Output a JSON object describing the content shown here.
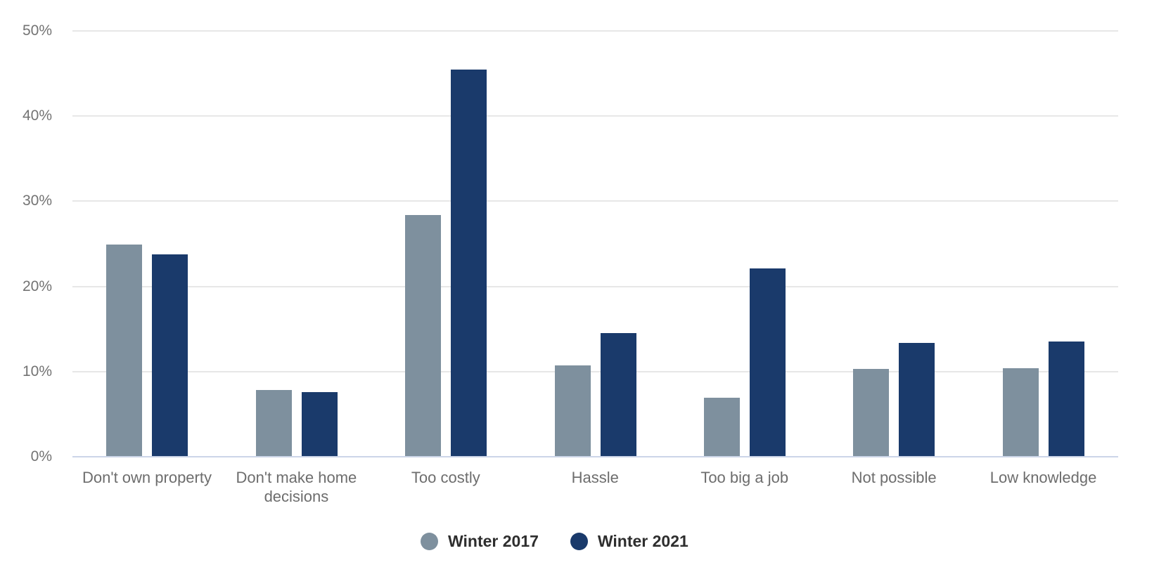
{
  "chart_data": {
    "type": "bar",
    "title": "",
    "categories": [
      "Don't own property",
      "Don't make home decisions",
      "Too costly",
      "Hassle",
      "Too big a job",
      "Not possible",
      "Low knowledge"
    ],
    "series": [
      {
        "name": "Winter 2017",
        "color": "#7E909E",
        "values": [
          24.9,
          7.8,
          28.4,
          10.7,
          6.9,
          10.3,
          10.4
        ]
      },
      {
        "name": "Winter 2021",
        "color": "#1A3A6B",
        "values": [
          23.8,
          7.6,
          45.5,
          14.5,
          22.1,
          13.4,
          13.5
        ]
      }
    ],
    "xlabel": "",
    "ylabel": "",
    "ylim": [
      0,
      50
    ],
    "ytick_step": 10,
    "ytick_labels": [
      "0%",
      "10%",
      "20%",
      "30%",
      "40%",
      "50%"
    ],
    "grid": true,
    "legend_position": "bottom"
  },
  "colors": {
    "gridline": "#E7E7E7",
    "baseline": "#CCD5E8",
    "ytick_text": "#737373",
    "xtick_text": "#6D6D6D",
    "legend_text": "#2E2E2E",
    "background": "#FFFFFF"
  }
}
